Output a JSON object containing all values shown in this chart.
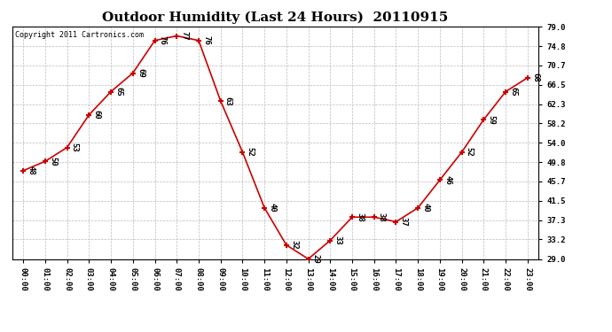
{
  "title": "Outdoor Humidity (Last 24 Hours)  20110915",
  "copyright": "Copyright 2011 Cartronics.com",
  "hours": [
    "00:00",
    "01:00",
    "02:00",
    "03:00",
    "04:00",
    "05:00",
    "06:00",
    "07:00",
    "08:00",
    "09:00",
    "10:00",
    "11:00",
    "12:00",
    "13:00",
    "14:00",
    "15:00",
    "16:00",
    "17:00",
    "18:00",
    "19:00",
    "20:00",
    "21:00",
    "22:00",
    "23:00"
  ],
  "values": [
    48,
    50,
    53,
    60,
    65,
    69,
    76,
    77,
    76,
    63,
    52,
    40,
    32,
    29,
    33,
    38,
    38,
    37,
    40,
    46,
    52,
    59,
    65,
    68
  ],
  "ylim_min": 29.0,
  "ylim_max": 79.0,
  "yticks": [
    29.0,
    33.2,
    37.3,
    41.5,
    45.7,
    49.8,
    54.0,
    58.2,
    62.3,
    66.5,
    70.7,
    74.8,
    79.0
  ],
  "ytick_labels": [
    "29.0",
    "33.2",
    "37.3",
    "41.5",
    "45.7",
    "49.8",
    "54.0",
    "58.2",
    "62.3",
    "66.5",
    "70.7",
    "74.8",
    "79.0"
  ],
  "line_color": "#cc0000",
  "marker_color": "#cc0000",
  "bg_color": "#ffffff",
  "grid_color": "#bbbbbb",
  "title_fontsize": 11,
  "label_fontsize": 6.5,
  "copyright_fontsize": 6,
  "value_label_fontsize": 6.5
}
